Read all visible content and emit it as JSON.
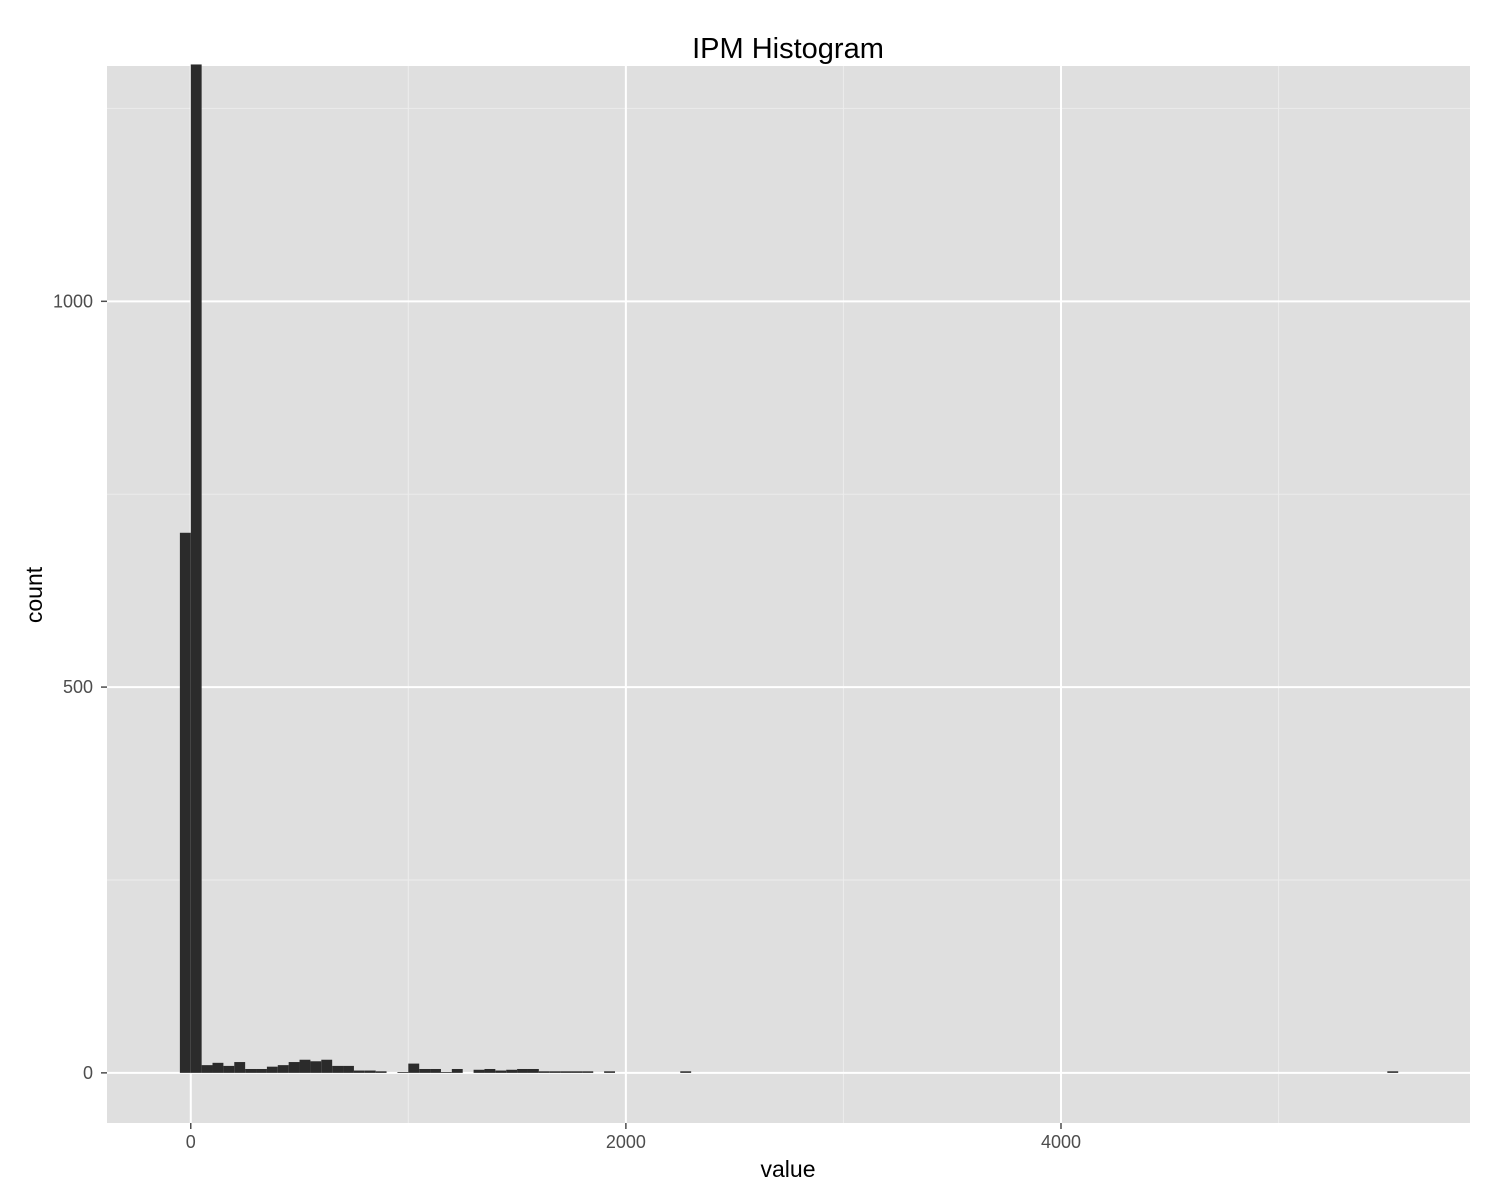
{
  "chart_data": {
    "type": "bar",
    "title": "IPM Histogram",
    "xlabel": "value",
    "ylabel": "count",
    "bin_width": 50,
    "xlim": [
      -385,
      5880
    ],
    "ylim": [
      -65,
      1305
    ],
    "x_ticks": [
      0,
      2000,
      4000
    ],
    "y_ticks": [
      0,
      500,
      1000
    ],
    "x_minor_ticks": [
      1000,
      3000,
      5000
    ],
    "y_minor_ticks": [
      250,
      750,
      1250
    ],
    "grid": true,
    "background_color": "#dfdfdf",
    "grid_color": "#ffffff",
    "bar_color": "#2b2b2b",
    "bins": [
      {
        "x": -25,
        "count": 700
      },
      {
        "x": 25,
        "count": 1307
      },
      {
        "x": 75,
        "count": 10
      },
      {
        "x": 125,
        "count": 13
      },
      {
        "x": 175,
        "count": 9
      },
      {
        "x": 225,
        "count": 14
      },
      {
        "x": 275,
        "count": 5
      },
      {
        "x": 325,
        "count": 5
      },
      {
        "x": 375,
        "count": 8
      },
      {
        "x": 425,
        "count": 10
      },
      {
        "x": 475,
        "count": 14
      },
      {
        "x": 525,
        "count": 17
      },
      {
        "x": 575,
        "count": 15
      },
      {
        "x": 625,
        "count": 17
      },
      {
        "x": 675,
        "count": 9
      },
      {
        "x": 725,
        "count": 9
      },
      {
        "x": 775,
        "count": 3
      },
      {
        "x": 825,
        "count": 3
      },
      {
        "x": 875,
        "count": 2
      },
      {
        "x": 975,
        "count": 1
      },
      {
        "x": 1025,
        "count": 12
      },
      {
        "x": 1075,
        "count": 5
      },
      {
        "x": 1125,
        "count": 5
      },
      {
        "x": 1175,
        "count": 1
      },
      {
        "x": 1225,
        "count": 5
      },
      {
        "x": 1325,
        "count": 4
      },
      {
        "x": 1375,
        "count": 5
      },
      {
        "x": 1425,
        "count": 3
      },
      {
        "x": 1475,
        "count": 4
      },
      {
        "x": 1525,
        "count": 5
      },
      {
        "x": 1575,
        "count": 5
      },
      {
        "x": 1625,
        "count": 2
      },
      {
        "x": 1675,
        "count": 2
      },
      {
        "x": 1725,
        "count": 2
      },
      {
        "x": 1775,
        "count": 2
      },
      {
        "x": 1825,
        "count": 2
      },
      {
        "x": 1925,
        "count": 2
      },
      {
        "x": 2275,
        "count": 2
      },
      {
        "x": 5525,
        "count": 2
      }
    ]
  }
}
